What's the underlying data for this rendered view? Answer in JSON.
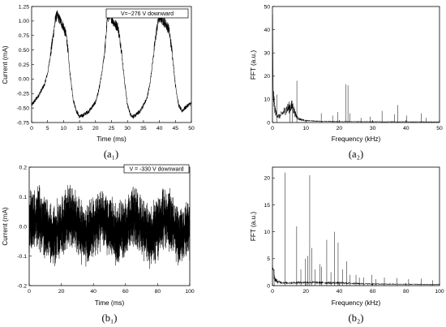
{
  "chart_data": [
    {
      "id": "a1",
      "type": "line",
      "caption": "(a₁)",
      "xlabel": "Time (ms)",
      "ylabel": "Current (mA)",
      "xlim": [
        0,
        50
      ],
      "ylim": [
        -0.75,
        1.25
      ],
      "xticks": [
        "0",
        "5",
        "10",
        "15",
        "20",
        "25",
        "30",
        "35",
        "40",
        "45",
        "50"
      ],
      "yticks": [
        "-0.75",
        "-0.50",
        "-0.25",
        "0.00",
        "0.25",
        "0.50",
        "0.75",
        "1.00",
        "1.25"
      ],
      "annotation": "V=−276 V downward",
      "series": [
        {
          "x": [
            0,
            2,
            4,
            5,
            6,
            7,
            7.5,
            8,
            9,
            10,
            11,
            12,
            13,
            14,
            15,
            16,
            18,
            20,
            21,
            22,
            23,
            23.7,
            24.5,
            26,
            27,
            28,
            29,
            30,
            31,
            32,
            34,
            36,
            37,
            38,
            39,
            39.8,
            40.5,
            42,
            43,
            44,
            45,
            46,
            47,
            48,
            49,
            50
          ],
          "y": [
            -0.45,
            -0.3,
            -0.1,
            0.1,
            0.45,
            0.85,
            1.05,
            1.1,
            1.0,
            0.9,
            0.7,
            0.1,
            -0.35,
            -0.55,
            -0.65,
            -0.63,
            -0.55,
            -0.4,
            -0.2,
            0.1,
            0.55,
            1.05,
            1.1,
            0.95,
            0.9,
            0.55,
            0.0,
            -0.45,
            -0.62,
            -0.65,
            -0.55,
            -0.35,
            -0.1,
            0.35,
            0.8,
            1.05,
            1.05,
            0.95,
            0.85,
            0.45,
            -0.1,
            -0.45,
            -0.55,
            -0.5,
            -0.45,
            -0.42
          ]
        }
      ]
    },
    {
      "id": "a2",
      "type": "line",
      "caption": "(a₂)",
      "xlabel": "Frequency (kHz)",
      "ylabel": "FFT (a.u.)",
      "xlim": [
        0,
        50
      ],
      "ylim": [
        0,
        50
      ],
      "xticks": [
        "0",
        "10",
        "20",
        "30",
        "40",
        "50"
      ],
      "yticks": [
        "0",
        "10",
        "20",
        "30",
        "40",
        "50"
      ],
      "baseline": [
        [
          0,
          47
        ],
        [
          0.2,
          14
        ],
        [
          0.5,
          8
        ],
        [
          1,
          4
        ],
        [
          2,
          2.5
        ],
        [
          3,
          4
        ],
        [
          4,
          5.5
        ],
        [
          5,
          6.5
        ],
        [
          6,
          7
        ],
        [
          7,
          3
        ],
        [
          8,
          1.5
        ],
        [
          10,
          0.8
        ],
        [
          15,
          0.5
        ],
        [
          25,
          0.4
        ],
        [
          35,
          0.35
        ],
        [
          50,
          0.3
        ]
      ],
      "peaks": [
        [
          1.3,
          12
        ],
        [
          5.2,
          6
        ],
        [
          6,
          7.5
        ],
        [
          7.3,
          18
        ],
        [
          14.6,
          4
        ],
        [
          18,
          3
        ],
        [
          19.5,
          4.5
        ],
        [
          21.9,
          16.5
        ],
        [
          22.6,
          16
        ],
        [
          23.2,
          4
        ],
        [
          26.5,
          2
        ],
        [
          29.2,
          2.5
        ],
        [
          32.8,
          5
        ],
        [
          36.5,
          3.5
        ],
        [
          37.5,
          7.5
        ],
        [
          40.2,
          3
        ],
        [
          44.5,
          4
        ],
        [
          46,
          2
        ]
      ]
    },
    {
      "id": "b1",
      "type": "line",
      "caption": "(b₁)",
      "xlabel": "Time (ms)",
      "ylabel": "Current (mA)",
      "xlim": [
        0,
        100
      ],
      "ylim": [
        -0.2,
        0.2
      ],
      "xticks": [
        "0",
        "20",
        "40",
        "60",
        "80",
        "100"
      ],
      "yticks": [
        "-0.2",
        "-0.1",
        "0.0",
        "0.1",
        "0.2"
      ],
      "annotation": "V = -330 V downward",
      "series": [
        {
          "envelope": "5 oscillation cycles over 100 ms",
          "x": [
            0,
            5,
            10,
            15,
            20,
            25,
            30,
            35,
            40,
            45,
            50,
            55,
            60,
            65,
            70,
            75,
            80,
            85,
            90,
            95,
            100
          ],
          "y": [
            0.0,
            0.035,
            0.0,
            -0.035,
            0.0,
            0.035,
            0.0,
            -0.035,
            0.0,
            0.035,
            0.0,
            -0.035,
            0.0,
            0.035,
            0.0,
            -0.035,
            0.0,
            0.035,
            0.0,
            -0.035,
            0.0
          ],
          "amplitude_band": 0.12
        }
      ]
    },
    {
      "id": "b2",
      "type": "line",
      "caption": "(b₂)",
      "xlabel": "Frequency (kHz)",
      "ylabel": "FFT (a.u.)",
      "xlim": [
        0,
        100
      ],
      "ylim": [
        0,
        22
      ],
      "xticks": [
        "0",
        "20",
        "40",
        "60",
        "80",
        "100"
      ],
      "yticks": [
        "0",
        "5",
        "10",
        "15",
        "20"
      ],
      "baseline": [
        [
          0,
          3.5
        ],
        [
          1,
          1.5
        ],
        [
          3,
          0.7
        ],
        [
          8,
          0.5
        ],
        [
          20,
          0.6
        ],
        [
          40,
          0.5
        ],
        [
          60,
          0.3
        ],
        [
          100,
          0.2
        ]
      ],
      "peaks": [
        [
          1,
          3
        ],
        [
          7.5,
          21
        ],
        [
          14.5,
          11
        ],
        [
          17,
          3
        ],
        [
          19.8,
          5
        ],
        [
          21,
          5.5
        ],
        [
          22.3,
          20.5
        ],
        [
          23.5,
          7
        ],
        [
          25.5,
          3
        ],
        [
          28.5,
          4
        ],
        [
          29.5,
          3.5
        ],
        [
          32.5,
          8.5
        ],
        [
          35,
          2.5
        ],
        [
          37.2,
          10
        ],
        [
          39.3,
          8
        ],
        [
          42,
          3
        ],
        [
          44.5,
          4.5
        ],
        [
          46.5,
          2
        ],
        [
          50,
          2
        ],
        [
          52,
          1.5
        ],
        [
          54.5,
          1.5
        ],
        [
          59.5,
          2
        ],
        [
          62,
          1.2
        ],
        [
          67,
          1.5
        ],
        [
          74.5,
          1.4
        ],
        [
          81.5,
          1.2
        ],
        [
          89,
          1.3
        ],
        [
          96,
          1
        ]
      ]
    }
  ]
}
